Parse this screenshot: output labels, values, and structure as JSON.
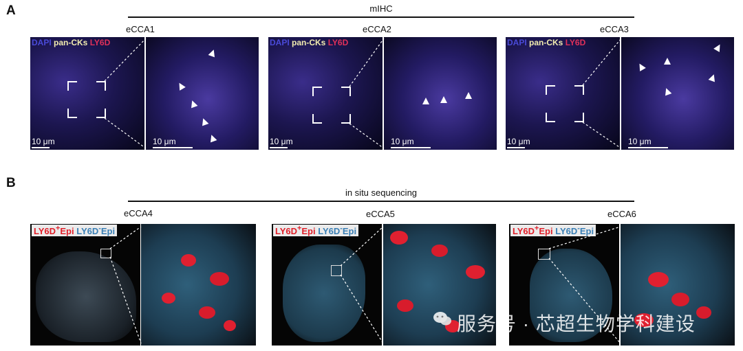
{
  "panel_a": {
    "letter": "A",
    "section_title": "mIHC",
    "samples": [
      "eCCA1",
      "eCCA2",
      "eCCA3"
    ],
    "legend": {
      "dapi": "DAPI",
      "pan_cks": "pan-CKs",
      "ly6d": "LY6D"
    },
    "scale_label": "10 μm"
  },
  "panel_b": {
    "letter": "B",
    "section_title": "in situ sequencing",
    "samples": [
      "eCCA4",
      "eCCA5",
      "eCCA6"
    ],
    "legend": {
      "pos_main": "LY6D",
      "pos_sup": "+",
      "pos_tail": "Epi",
      "neg_main": "LY6D",
      "neg_sup": "-",
      "neg_tail": "Epi"
    }
  },
  "watermark": {
    "text": "服务号 · 芯超生物学科建设"
  },
  "colors": {
    "dapi": "#4a4ad8",
    "pan_cks": "#f2ecb0",
    "ly6d": "#e0305a",
    "ly6d_pos_epi": "#e0202a",
    "ly6d_neg_epi": "#3a7fb5"
  }
}
